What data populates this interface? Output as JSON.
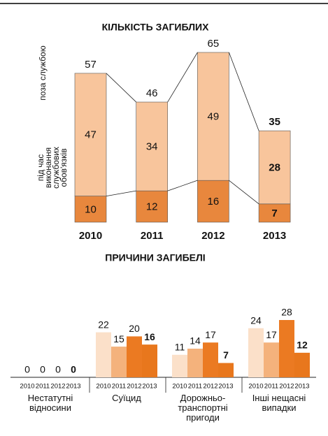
{
  "chart_data": [
    {
      "type": "stacked_bar",
      "title": "КІЛЬКІСТЬ ЗАГИБЛИХ",
      "categories": [
        "2010",
        "2011",
        "2012",
        "2013"
      ],
      "series": [
        {
          "name": "під час\nвиконання службових\nобов'язків",
          "color": "#e8873d",
          "values": [
            10,
            12,
            16,
            7
          ]
        },
        {
          "name": "поза службою",
          "color": "#f8c59c",
          "values": [
            47,
            34,
            49,
            28
          ]
        }
      ],
      "totals": [
        57,
        46,
        65,
        35
      ]
    },
    {
      "type": "grouped_bar",
      "title": "ПРИЧИНИ ЗАГИБЕЛІ",
      "categories": [
        "Нестатутні\nвідносини",
        "Суїцид",
        "Дорожньо-\nтранспортні\nпригоди",
        "Інші нещасні\nвипадки"
      ],
      "series": [
        {
          "name": "2010",
          "color": "#fbe0c9",
          "values": [
            0,
            22,
            11,
            24
          ]
        },
        {
          "name": "2011",
          "color": "#f4b27c",
          "values": [
            0,
            15,
            14,
            17
          ]
        },
        {
          "name": "2012",
          "color": "#eb7a22",
          "values": [
            0,
            20,
            17,
            28
          ]
        },
        {
          "name": "2013",
          "color": "#e8771d",
          "values": [
            0,
            16,
            7,
            12
          ]
        }
      ]
    }
  ]
}
